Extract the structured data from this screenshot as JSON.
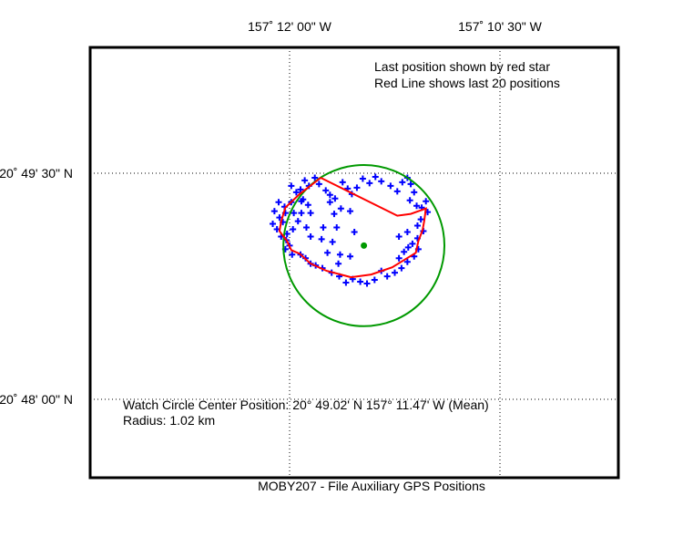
{
  "chart_data": {
    "type": "scatter",
    "title": "MOBY207 - File Auxiliary GPS Positions",
    "x_ticks": [
      {
        "value": -157.2,
        "label": "157˚ 12' 00\" W"
      },
      {
        "value": -157.175,
        "label": "157˚ 10' 30\" W"
      }
    ],
    "y_ticks": [
      {
        "value": 20.825,
        "label": "20˚ 49' 30\" N"
      },
      {
        "value": 20.8,
        "label": "20˚ 48' 00\" N"
      }
    ],
    "grid": "dotted",
    "annotations": {
      "last_position": "Last position shown by red star",
      "red_line": "Red Line shows last 20 positions",
      "center": "Watch Circle Center Position: 20° 49.02' N   157° 11.47' W (Mean)",
      "radius": "Radius: 1.02 km"
    },
    "watch_circle": {
      "center": [
        -157.19117,
        20.817
      ],
      "radius_km": 1.02,
      "color": "#009900"
    },
    "colors": {
      "positions": "#0000ff",
      "last20": "#ff0000",
      "circle": "#009900"
    },
    "positions": [
      [
        -157.1982,
        20.8242
      ],
      [
        -157.1987,
        20.8232
      ],
      [
        -157.1992,
        20.8229
      ],
      [
        -157.1998,
        20.8236
      ],
      [
        -157.1984,
        20.8221
      ],
      [
        -157.1977,
        20.8236
      ],
      [
        -157.197,
        20.8245
      ],
      [
        -157.1965,
        20.8238
      ],
      [
        -157.1957,
        20.8231
      ],
      [
        -157.1952,
        20.8226
      ],
      [
        -157.1946,
        20.8222
      ],
      [
        -157.1937,
        20.824
      ],
      [
        -157.1931,
        20.8233
      ],
      [
        -157.1926,
        20.8227
      ],
      [
        -157.192,
        20.8234
      ],
      [
        -157.1913,
        20.8244
      ],
      [
        -157.1905,
        20.8239
      ],
      [
        -157.1898,
        20.8246
      ],
      [
        -157.1891,
        20.8241
      ],
      [
        -157.188,
        20.8236
      ],
      [
        -157.1872,
        20.823
      ],
      [
        -157.1866,
        20.824
      ],
      [
        -157.186,
        20.8245
      ],
      [
        -157.1856,
        20.8238
      ],
      [
        -157.1852,
        20.8229
      ],
      [
        -157.1857,
        20.822
      ],
      [
        -157.1849,
        20.8214
      ],
      [
        -157.1843,
        20.8212
      ],
      [
        -157.1838,
        20.8219
      ],
      [
        -157.1836,
        20.8207
      ],
      [
        -157.1844,
        20.8199
      ],
      [
        -157.1848,
        20.8192
      ],
      [
        -157.1841,
        20.8186
      ],
      [
        -157.1848,
        20.8178
      ],
      [
        -157.1854,
        20.8172
      ],
      [
        -157.1847,
        20.8166
      ],
      [
        -157.1859,
        20.8168
      ],
      [
        -157.1864,
        20.8163
      ],
      [
        -157.1852,
        20.8158
      ],
      [
        -157.186,
        20.8152
      ],
      [
        -157.187,
        20.8156
      ],
      [
        -157.1867,
        20.8145
      ],
      [
        -157.1875,
        20.814
      ],
      [
        -157.1884,
        20.8136
      ],
      [
        -157.1891,
        20.8142
      ],
      [
        -157.1899,
        20.8132
      ],
      [
        -157.1908,
        20.8128
      ],
      [
        -157.1916,
        20.813
      ],
      [
        -157.1925,
        20.8133
      ],
      [
        -157.1933,
        20.8129
      ],
      [
        -157.1941,
        20.8136
      ],
      [
        -157.195,
        20.814
      ],
      [
        -157.1961,
        20.8145
      ],
      [
        -157.1969,
        20.8148
      ],
      [
        -157.1975,
        20.815
      ],
      [
        -157.1981,
        20.8156
      ],
      [
        -157.1987,
        20.816
      ],
      [
        -157.1997,
        20.816
      ],
      [
        -157.2005,
        20.8166
      ],
      [
        -157.2,
        20.817
      ],
      [
        -157.2004,
        20.8176
      ],
      [
        -157.201,
        20.818
      ],
      [
        -157.2003,
        20.8183
      ],
      [
        -157.2015,
        20.8188
      ],
      [
        -157.202,
        20.8194
      ],
      [
        -157.2008,
        20.8196
      ],
      [
        -157.2012,
        20.8201
      ],
      [
        -157.2018,
        20.8208
      ],
      [
        -157.2005,
        20.8206
      ],
      [
        -157.1995,
        20.8206
      ],
      [
        -157.1986,
        20.8206
      ],
      [
        -157.1975,
        20.8206
      ],
      [
        -157.2006,
        20.8213
      ],
      [
        -157.2013,
        20.8218
      ],
      [
        -157.1998,
        20.8218
      ],
      [
        -157.1986,
        20.8219
      ],
      [
        -157.1978,
        20.8215
      ],
      [
        -157.198,
        20.819
      ],
      [
        -157.1975,
        20.818
      ],
      [
        -157.1962,
        20.8177
      ],
      [
        -157.1949,
        20.8174
      ],
      [
        -157.196,
        20.819
      ],
      [
        -157.1944,
        20.819
      ],
      [
        -157.1955,
        20.8162
      ],
      [
        -157.194,
        20.816
      ],
      [
        -157.1928,
        20.8158
      ],
      [
        -157.1942,
        20.815
      ],
      [
        -157.1923,
        20.8185
      ],
      [
        -157.1952,
        20.8218
      ],
      [
        -157.1947,
        20.8205
      ],
      [
        -157.1939,
        20.8211
      ],
      [
        -157.1928,
        20.8208
      ],
      [
        -157.199,
        20.8197
      ],
      [
        -157.1996,
        20.8188
      ],
      [
        -157.187,
        20.818
      ],
      [
        -157.186,
        20.8185
      ]
    ],
    "last_20": [
      [
        -157.1963,
        20.8245
      ],
      [
        -157.1988,
        20.8227
      ],
      [
        -157.2005,
        20.8212
      ],
      [
        -157.201,
        20.8197
      ],
      [
        -157.2012,
        20.8186
      ],
      [
        -157.2003,
        20.8175
      ],
      [
        -157.1998,
        20.8165
      ],
      [
        -157.1988,
        20.8161
      ],
      [
        -157.1975,
        20.815
      ],
      [
        -157.1956,
        20.8142
      ],
      [
        -157.1927,
        20.8135
      ],
      [
        -157.1903,
        20.8138
      ],
      [
        -157.1878,
        20.8146
      ],
      [
        -157.185,
        20.8162
      ],
      [
        -157.1847,
        20.8175
      ],
      [
        -157.1842,
        20.8187
      ],
      [
        -157.184,
        20.8197
      ],
      [
        -157.1838,
        20.8211
      ],
      [
        -157.1856,
        20.8205
      ],
      [
        -157.1872,
        20.8203
      ],
      [
        -157.1963,
        20.8245
      ]
    ]
  }
}
